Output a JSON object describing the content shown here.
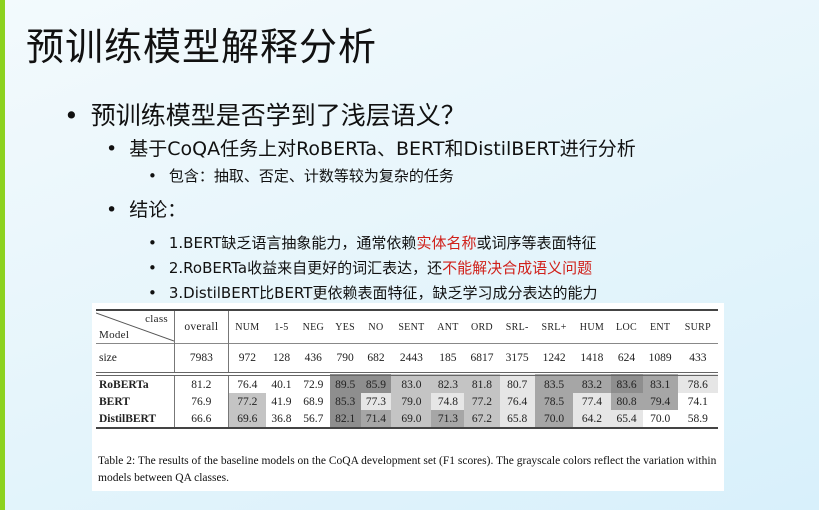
{
  "colors": {
    "accent_stripe": "#8cd21e",
    "highlight_red": "#d0201a"
  },
  "title": "预训练模型解释分析",
  "bullets": {
    "l1": "预训练模型是否学到了浅层语义？",
    "l2a": "基于CoQA任务上对RoBERTa、BERT和DistilBERT进行分析",
    "l3a": "包含：抽取、否定、计数等较为复杂的任务",
    "l2b": "结论：",
    "c1": {
      "pre": "1.BERT缺乏语言抽象能力，通常依赖",
      "red": "实体名称",
      "post": "或词序等表面特征"
    },
    "c2": {
      "pre": "2.RoBERTa收益来自更好的词汇表达，还",
      "red": "不能解决合成语义问题",
      "post": ""
    },
    "c3": {
      "pre": "3.DistilBERT比BERT更依赖表面特征，缺乏学习成分表达的能力",
      "red": "",
      "post": ""
    }
  },
  "table": {
    "corner_class": "class",
    "corner_model": "Model",
    "columns": [
      "overall",
      "NUM",
      "1-5",
      "NEG",
      "YES",
      "NO",
      "SENT",
      "ANT",
      "ORD",
      "SRL-",
      "SRL+",
      "HUM",
      "LOC",
      "ENT",
      "SURP"
    ],
    "size_label": "size",
    "sizes": [
      "7983",
      "972",
      "128",
      "436",
      "790",
      "682",
      "2443",
      "185",
      "6817",
      "3175",
      "1242",
      "1418",
      "624",
      "1089",
      "433"
    ],
    "rows": [
      {
        "model": "RoBERTa",
        "values": [
          "81.2",
          "76.4",
          "40.1",
          "72.9",
          "89.5",
          "85.9",
          "83.0",
          "82.3",
          "81.8",
          "80.7",
          "83.5",
          "83.2",
          "83.6",
          "83.1",
          "78.6"
        ],
        "shade": [
          0,
          0,
          0,
          0,
          4,
          4,
          2,
          2,
          2,
          1,
          3,
          3,
          4,
          3,
          1
        ]
      },
      {
        "model": "BERT",
        "values": [
          "76.9",
          "77.2",
          "41.9",
          "68.9",
          "85.3",
          "77.3",
          "79.0",
          "74.8",
          "77.2",
          "76.4",
          "78.5",
          "77.4",
          "80.8",
          "79.4",
          "74.1"
        ],
        "shade": [
          0,
          2,
          0,
          0,
          4,
          1,
          2,
          1,
          2,
          1,
          3,
          1,
          3,
          3,
          0
        ]
      },
      {
        "model": "DistilBERT",
        "values": [
          "66.6",
          "69.6",
          "36.8",
          "56.7",
          "82.1",
          "71.4",
          "69.0",
          "71.3",
          "67.2",
          "65.8",
          "70.0",
          "64.2",
          "65.4",
          "70.0",
          "58.9"
        ],
        "shade": [
          0,
          2,
          0,
          0,
          4,
          3,
          2,
          3,
          2,
          1,
          3,
          1,
          1,
          0,
          0
        ]
      }
    ],
    "caption": "Table 2: The results of the baseline models on the CoQA development set (F1 scores). The grayscale colors reflect the variation within models between QA classes."
  }
}
